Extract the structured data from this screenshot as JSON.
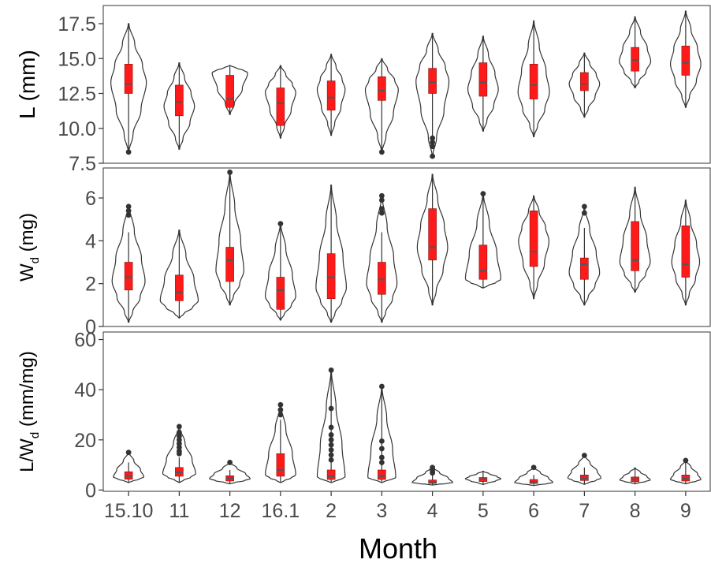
{
  "chart_data": {
    "type": "violin",
    "x_categories": [
      "15.10",
      "11",
      "12",
      "16.1",
      "2",
      "3",
      "4",
      "5",
      "6",
      "7",
      "8",
      "9"
    ],
    "xlabel": "Month",
    "colors": {
      "box_fill": "#ff1a1a",
      "outline": "#333333",
      "points": "#333333",
      "median": "#555555"
    },
    "panels": [
      {
        "ylabel_main": "L",
        "ylabel_sub": "",
        "ylabel_unit": "(mm)",
        "ylim": [
          7.5,
          18.8
        ],
        "yticks": [
          7.5,
          10.0,
          12.5,
          15.0,
          17.5
        ],
        "ytick_labels": [
          "7.5",
          "10.0",
          "12.5",
          "15.0",
          "17.5"
        ],
        "groups": [
          {
            "min": 8.3,
            "max": 17.5,
            "q1": 12.5,
            "median": 13.2,
            "q3": 14.6,
            "wlo": 8.3,
            "whi": 17.5,
            "outliers": [
              8.3
            ],
            "width": 0.7,
            "mode": 13.3
          },
          {
            "min": 8.5,
            "max": 14.7,
            "q1": 10.9,
            "median": 11.9,
            "q3": 13.1,
            "wlo": 8.5,
            "whi": 14.7,
            "outliers": [],
            "width": 0.6,
            "mode": 11.6
          },
          {
            "min": 11.0,
            "max": 14.5,
            "q1": 11.5,
            "median": 12.1,
            "q3": 13.8,
            "wlo": 11.0,
            "whi": 14.5,
            "outliers": [],
            "width": 0.7,
            "mode": 14.0
          },
          {
            "min": 9.3,
            "max": 14.5,
            "q1": 10.2,
            "median": 11.8,
            "q3": 12.9,
            "wlo": 9.3,
            "whi": 14.5,
            "outliers": [],
            "width": 0.6,
            "mode": 12.6
          },
          {
            "min": 9.5,
            "max": 15.3,
            "q1": 11.3,
            "median": 12.2,
            "q3": 13.4,
            "wlo": 9.5,
            "whi": 15.3,
            "outliers": [],
            "width": 0.55,
            "mode": 12.8
          },
          {
            "min": 8.3,
            "max": 15.0,
            "q1": 12.0,
            "median": 12.7,
            "q3": 13.7,
            "wlo": 8.3,
            "whi": 15.0,
            "outliers": [
              8.3
            ],
            "width": 0.65,
            "mode": 12.8
          },
          {
            "min": 8.0,
            "max": 16.8,
            "q1": 12.5,
            "median": 13.3,
            "q3": 14.3,
            "wlo": 9.4,
            "whi": 16.8,
            "outliers": [
              8.0,
              8.7,
              9.0,
              9.3
            ],
            "width": 0.65,
            "mode": 13.4
          },
          {
            "min": 9.8,
            "max": 16.6,
            "q1": 12.3,
            "median": 13.3,
            "q3": 14.7,
            "wlo": 9.8,
            "whi": 16.6,
            "outliers": [],
            "width": 0.6,
            "mode": 12.8
          },
          {
            "min": 9.4,
            "max": 17.7,
            "q1": 12.1,
            "median": 13.1,
            "q3": 14.6,
            "wlo": 9.4,
            "whi": 17.7,
            "outliers": [],
            "width": 0.62,
            "mode": 12.6
          },
          {
            "min": 10.8,
            "max": 15.4,
            "q1": 12.7,
            "median": 13.2,
            "q3": 14.0,
            "wlo": 10.8,
            "whi": 15.4,
            "outliers": [],
            "width": 0.6,
            "mode": 13.2
          },
          {
            "min": 12.9,
            "max": 18.0,
            "q1": 14.1,
            "median": 14.9,
            "q3": 15.8,
            "wlo": 12.9,
            "whi": 18.0,
            "outliers": [],
            "width": 0.62,
            "mode": 14.8
          },
          {
            "min": 11.5,
            "max": 18.4,
            "q1": 13.8,
            "median": 14.7,
            "q3": 15.9,
            "wlo": 11.5,
            "whi": 18.4,
            "outliers": [],
            "width": 0.6,
            "mode": 14.6
          }
        ]
      },
      {
        "ylabel_main": "W",
        "ylabel_sub": "d",
        "ylabel_unit": "(mg)",
        "ylim": [
          0,
          7.4
        ],
        "yticks": [
          0,
          2,
          4,
          6
        ],
        "ytick_labels": [
          "0",
          "2",
          "4",
          "6"
        ],
        "groups": [
          {
            "min": 0.2,
            "max": 5.7,
            "q1": 1.7,
            "median": 2.3,
            "q3": 3.0,
            "wlo": 0.2,
            "whi": 4.4,
            "outliers": [
              5.2,
              5.4,
              5.6
            ],
            "width": 0.65,
            "mode": 2.1
          },
          {
            "min": 0.4,
            "max": 4.5,
            "q1": 1.2,
            "median": 1.6,
            "q3": 2.4,
            "wlo": 0.4,
            "whi": 4.5,
            "outliers": [],
            "width": 0.75,
            "mode": 1.2
          },
          {
            "min": 1.0,
            "max": 7.2,
            "q1": 2.1,
            "median": 3.1,
            "q3": 3.7,
            "wlo": 1.0,
            "whi": 7.2,
            "outliers": [
              7.2
            ],
            "width": 0.55,
            "mode": 2.6
          },
          {
            "min": 0.3,
            "max": 4.8,
            "q1": 0.8,
            "median": 1.7,
            "q3": 2.3,
            "wlo": 0.3,
            "whi": 4.8,
            "outliers": [
              4.8
            ],
            "width": 0.6,
            "mode": 1.4
          },
          {
            "min": 0.2,
            "max": 6.6,
            "q1": 1.3,
            "median": 2.3,
            "q3": 3.4,
            "wlo": 0.2,
            "whi": 6.6,
            "outliers": [],
            "width": 0.6,
            "mode": 1.8
          },
          {
            "min": 0.2,
            "max": 6.1,
            "q1": 1.5,
            "median": 2.2,
            "q3": 3.0,
            "wlo": 0.2,
            "whi": 4.4,
            "outliers": [
              5.3,
              5.5,
              5.9,
              6.1
            ],
            "width": 0.6,
            "mode": 2.0
          },
          {
            "min": 1.0,
            "max": 7.1,
            "q1": 3.1,
            "median": 3.7,
            "q3": 5.5,
            "wlo": 1.0,
            "whi": 7.1,
            "outliers": [],
            "width": 0.6,
            "mode": 3.7
          },
          {
            "min": 1.8,
            "max": 6.2,
            "q1": 2.2,
            "median": 2.6,
            "q3": 3.8,
            "wlo": 1.8,
            "whi": 6.2,
            "outliers": [
              6.2
            ],
            "width": 0.7,
            "mode": 2.2
          },
          {
            "min": 1.3,
            "max": 6.1,
            "q1": 2.8,
            "median": 3.5,
            "q3": 5.4,
            "wlo": 1.3,
            "whi": 6.1,
            "outliers": [],
            "width": 0.6,
            "mode": 4.0
          },
          {
            "min": 1.0,
            "max": 5.6,
            "q1": 2.2,
            "median": 2.9,
            "q3": 3.2,
            "wlo": 1.0,
            "whi": 4.6,
            "outliers": [
              5.3,
              5.6
            ],
            "width": 0.6,
            "mode": 2.5
          },
          {
            "min": 1.6,
            "max": 6.5,
            "q1": 2.6,
            "median": 3.1,
            "q3": 4.9,
            "wlo": 1.6,
            "whi": 6.5,
            "outliers": [],
            "width": 0.6,
            "mode": 3.0
          },
          {
            "min": 1.0,
            "max": 5.9,
            "q1": 2.3,
            "median": 2.9,
            "q3": 4.7,
            "wlo": 1.0,
            "whi": 5.9,
            "outliers": [],
            "width": 0.55,
            "mode": 3.0
          }
        ]
      },
      {
        "ylabel_main": "L/W",
        "ylabel_sub": "d",
        "ylabel_unit": "(mm/mg)",
        "ylim": [
          -0.5,
          63
        ],
        "yticks": [
          0,
          20,
          40,
          60
        ],
        "ytick_labels": [
          "0",
          "20",
          "40",
          "60"
        ],
        "groups": [
          {
            "min": 3.0,
            "max": 15.0,
            "q1": 4.3,
            "median": 5.6,
            "q3": 7.3,
            "wlo": 3.0,
            "whi": 11.0,
            "outliers": [
              15.0
            ],
            "width": 0.6,
            "mode": 5.2
          },
          {
            "min": 3.0,
            "max": 25.3,
            "q1": 5.5,
            "median": 7.0,
            "q3": 9.0,
            "wlo": 3.0,
            "whi": 13.0,
            "outliers": [
              14.5,
              15.5,
              17.0,
              18.5,
              20.0,
              21.5,
              23.0,
              25.3
            ],
            "width": 0.65,
            "mode": 6.5
          },
          {
            "min": 2.5,
            "max": 11.0,
            "q1": 3.6,
            "median": 4.7,
            "q3": 5.7,
            "wlo": 2.5,
            "whi": 8.0,
            "outliers": [
              11.0
            ],
            "width": 0.8,
            "mode": 4.5
          },
          {
            "min": 3.0,
            "max": 34.0,
            "q1": 5.5,
            "median": 8.0,
            "q3": 14.5,
            "wlo": 3.0,
            "whi": 28.0,
            "outliers": [
              30.0,
              32.0,
              34.0
            ],
            "width": 0.6,
            "mode": 6.0
          },
          {
            "min": 3.0,
            "max": 47.8,
            "q1": 4.2,
            "median": 5.5,
            "q3": 8.0,
            "wlo": 3.0,
            "whi": 47.8,
            "outliers": [
              12.0,
              14.0,
              16.0,
              18.0,
              20.0,
              22.0,
              25.0,
              32.5,
              47.8
            ],
            "width": 0.55,
            "mode": 5.0
          },
          {
            "min": 3.0,
            "max": 41.3,
            "q1": 4.2,
            "median": 5.6,
            "q3": 8.0,
            "wlo": 3.0,
            "whi": 41.3,
            "outliers": [
              11.0,
              13.0,
              16.5,
              19.5,
              41.3
            ],
            "width": 0.55,
            "mode": 5.0
          },
          {
            "min": 2.0,
            "max": 9.0,
            "q1": 2.6,
            "median": 3.1,
            "q3": 4.0,
            "wlo": 2.0,
            "whi": 6.0,
            "outliers": [
              6.8,
              7.5,
              8.2,
              9.0
            ],
            "width": 0.8,
            "mode": 3.0
          },
          {
            "min": 2.2,
            "max": 7.5,
            "q1": 3.4,
            "median": 4.3,
            "q3": 5.0,
            "wlo": 2.2,
            "whi": 7.5,
            "outliers": [],
            "width": 0.7,
            "mode": 4.5
          },
          {
            "min": 1.8,
            "max": 9.0,
            "q1": 2.6,
            "median": 3.2,
            "q3": 4.2,
            "wlo": 1.8,
            "whi": 6.0,
            "outliers": [
              9.0
            ],
            "width": 0.75,
            "mode": 3.0
          },
          {
            "min": 2.3,
            "max": 13.8,
            "q1": 3.8,
            "median": 4.6,
            "q3": 6.0,
            "wlo": 2.3,
            "whi": 9.0,
            "outliers": [
              13.8
            ],
            "width": 0.65,
            "mode": 4.8
          },
          {
            "min": 2.5,
            "max": 8.8,
            "q1": 3.3,
            "median": 4.2,
            "q3": 5.2,
            "wlo": 2.5,
            "whi": 8.8,
            "outliers": [],
            "width": 0.6,
            "mode": 4.0
          },
          {
            "min": 2.5,
            "max": 11.8,
            "q1": 3.6,
            "median": 4.5,
            "q3": 6.0,
            "wlo": 2.5,
            "whi": 11.8,
            "outliers": [
              11.8
            ],
            "width": 0.6,
            "mode": 4.2
          }
        ]
      }
    ]
  }
}
